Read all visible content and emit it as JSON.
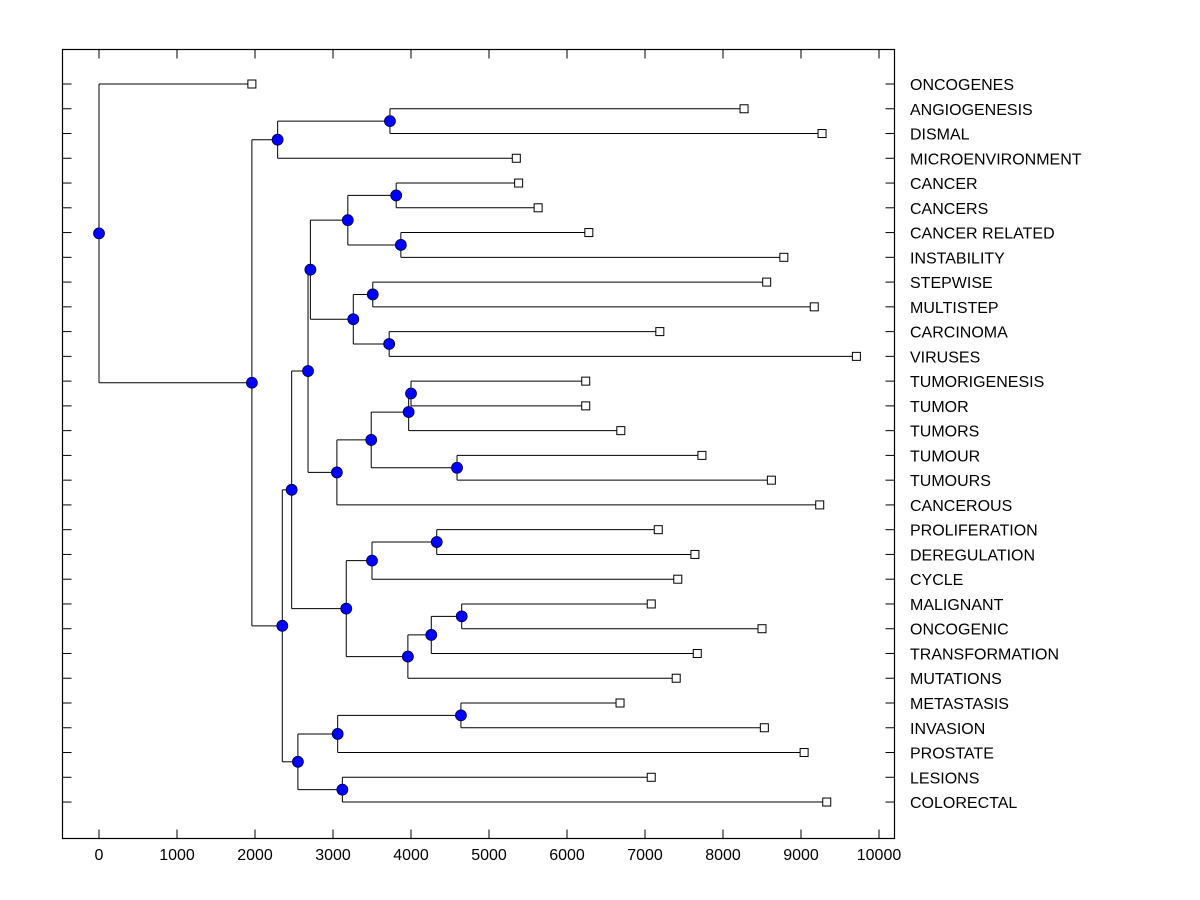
{
  "chart_data": {
    "type": "dendrogram",
    "orientation": "horizontal",
    "title": "",
    "xlabel": "",
    "ylabel": "",
    "xlim": [
      -500,
      10200
    ],
    "x_ticks": [
      0,
      1000,
      2000,
      3000,
      4000,
      5000,
      6000,
      7000,
      8000,
      9000,
      10000
    ],
    "x_tick_labels": [
      "0",
      "1000",
      "2000",
      "3000",
      "4000",
      "5000",
      "6000",
      "7000",
      "8000",
      "9000",
      "10000"
    ],
    "grid": false,
    "node_color": "#0000ff",
    "leaf_marker": "open-square",
    "leaves": [
      {
        "id": "ONCOGENES",
        "label": "ONCOGENES",
        "value": 1960
      },
      {
        "id": "ANGIOGENESIS",
        "label": "ANGIOGENESIS",
        "value": 8270
      },
      {
        "id": "DISMAL",
        "label": "DISMAL",
        "value": 9270
      },
      {
        "id": "MICROENVIRONMENT",
        "label": "MICROENVIRONMENT",
        "value": 5350
      },
      {
        "id": "CANCER",
        "label": "CANCER",
        "value": 5380
      },
      {
        "id": "CANCERS",
        "label": "CANCERS",
        "value": 5630
      },
      {
        "id": "CANCER_RELATED",
        "label": "CANCER RELATED",
        "value": 6280
      },
      {
        "id": "INSTABILITY",
        "label": "INSTABILITY",
        "value": 8780
      },
      {
        "id": "STEPWISE",
        "label": "STEPWISE",
        "value": 8560
      },
      {
        "id": "MULTISTEP",
        "label": "MULTISTEP",
        "value": 9170
      },
      {
        "id": "CARCINOMA",
        "label": "CARCINOMA",
        "value": 7190
      },
      {
        "id": "VIRUSES",
        "label": "VIRUSES",
        "value": 9710
      },
      {
        "id": "TUMORIGENESIS",
        "label": "TUMORIGENESIS",
        "value": 6240
      },
      {
        "id": "TUMOR",
        "label": "TUMOR",
        "value": 6240
      },
      {
        "id": "TUMORS",
        "label": "TUMORS",
        "value": 6690
      },
      {
        "id": "TUMOUR",
        "label": "TUMOUR",
        "value": 7730
      },
      {
        "id": "TUMOURS",
        "label": "TUMOURS",
        "value": 8620
      },
      {
        "id": "CANCEROUS",
        "label": "CANCEROUS",
        "value": 9240
      },
      {
        "id": "PROLIFERATION",
        "label": "PROLIFERATION",
        "value": 7170
      },
      {
        "id": "DEREGULATION",
        "label": "DEREGULATION",
        "value": 7640
      },
      {
        "id": "CYCLE",
        "label": "CYCLE",
        "value": 7420
      },
      {
        "id": "MALIGNANT",
        "label": "MALIGNANT",
        "value": 7080
      },
      {
        "id": "ONCOGENIC",
        "label": "ONCOGENIC",
        "value": 8500
      },
      {
        "id": "TRANSFORMATION",
        "label": "TRANSFORMATION",
        "value": 7670
      },
      {
        "id": "MUTATIONS",
        "label": "MUTATIONS",
        "value": 7400
      },
      {
        "id": "METASTASIS",
        "label": "METASTASIS",
        "value": 6680
      },
      {
        "id": "INVASION",
        "label": "INVASION",
        "value": 8530
      },
      {
        "id": "PROSTATE",
        "label": "PROSTATE",
        "value": 9040
      },
      {
        "id": "LESIONS",
        "label": "LESIONS",
        "value": 7080
      },
      {
        "id": "COLORECTAL",
        "label": "COLORECTAL",
        "value": 9330
      }
    ],
    "nodes": [
      {
        "id": "n_angio_dismal",
        "value": 3730,
        "children": [
          "ANGIOGENESIS",
          "DISMAL"
        ]
      },
      {
        "id": "n_angio_micro",
        "value": 2290,
        "children": [
          "n_angio_dismal",
          "MICROENVIRONMENT"
        ]
      },
      {
        "id": "n_cancer_cancers",
        "value": 3810,
        "children": [
          "CANCER",
          "CANCERS"
        ]
      },
      {
        "id": "n_related_instab",
        "value": 3870,
        "children": [
          "CANCER_RELATED",
          "INSTABILITY"
        ]
      },
      {
        "id": "n_cancer_group",
        "value": 3190,
        "children": [
          "n_cancer_cancers",
          "n_related_instab"
        ]
      },
      {
        "id": "n_step_multi",
        "value": 3510,
        "children": [
          "STEPWISE",
          "MULTISTEP"
        ]
      },
      {
        "id": "n_carc_virus",
        "value": 3720,
        "children": [
          "CARCINOMA",
          "VIRUSES"
        ]
      },
      {
        "id": "n_step_group",
        "value": 3260,
        "children": [
          "n_step_multi",
          "n_carc_virus"
        ]
      },
      {
        "id": "n_cancer_step",
        "value": 2710,
        "children": [
          "n_cancer_group",
          "n_step_group"
        ]
      },
      {
        "id": "n_tumorig_tumor",
        "value": 4000,
        "children": [
          "TUMORIGENESIS",
          "TUMOR"
        ]
      },
      {
        "id": "n_tumor_tumors",
        "value": 3970,
        "children": [
          "n_tumorig_tumor",
          "TUMORS"
        ]
      },
      {
        "id": "n_tumour_tumours",
        "value": 4590,
        "children": [
          "TUMOUR",
          "TUMOURS"
        ]
      },
      {
        "id": "n_tumor_group",
        "value": 3490,
        "children": [
          "n_tumor_tumors",
          "n_tumour_tumours"
        ]
      },
      {
        "id": "n_tumor_cancerous",
        "value": 3050,
        "children": [
          "n_tumor_group",
          "CANCEROUS"
        ]
      },
      {
        "id": "n_upper_mid",
        "value": 2680,
        "children": [
          "n_cancer_step",
          "n_tumor_cancerous"
        ]
      },
      {
        "id": "n_prolif_dereg",
        "value": 4330,
        "children": [
          "PROLIFERATION",
          "DEREGULATION"
        ]
      },
      {
        "id": "n_prolif_cycle",
        "value": 3500,
        "children": [
          "n_prolif_dereg",
          "CYCLE"
        ]
      },
      {
        "id": "n_malig_oncogenic",
        "value": 4650,
        "children": [
          "MALIGNANT",
          "ONCOGENIC"
        ]
      },
      {
        "id": "n_malig_transf",
        "value": 4260,
        "children": [
          "n_malig_oncogenic",
          "TRANSFORMATION"
        ]
      },
      {
        "id": "n_malig_mut",
        "value": 3960,
        "children": [
          "n_malig_transf",
          "MUTATIONS"
        ]
      },
      {
        "id": "n_cycle_malig",
        "value": 3170,
        "children": [
          "n_prolif_cycle",
          "n_malig_mut"
        ]
      },
      {
        "id": "n_mid",
        "value": 2470,
        "children": [
          "n_upper_mid",
          "n_cycle_malig"
        ]
      },
      {
        "id": "n_meta_inv",
        "value": 4640,
        "children": [
          "METASTASIS",
          "INVASION"
        ]
      },
      {
        "id": "n_meta_prostate",
        "value": 3060,
        "children": [
          "n_meta_inv",
          "PROSTATE"
        ]
      },
      {
        "id": "n_lesions_colo",
        "value": 3120,
        "children": [
          "LESIONS",
          "COLORECTAL"
        ]
      },
      {
        "id": "n_bottom",
        "value": 2550,
        "children": [
          "n_meta_prostate",
          "n_lesions_colo"
        ]
      },
      {
        "id": "n_lower",
        "value": 2350,
        "children": [
          "n_mid",
          "n_bottom"
        ]
      },
      {
        "id": "n_main",
        "value": 1960,
        "children": [
          "n_angio_micro",
          "n_lower"
        ]
      },
      {
        "id": "root",
        "value": 0,
        "children": [
          "ONCOGENES",
          "n_main"
        ]
      }
    ]
  }
}
